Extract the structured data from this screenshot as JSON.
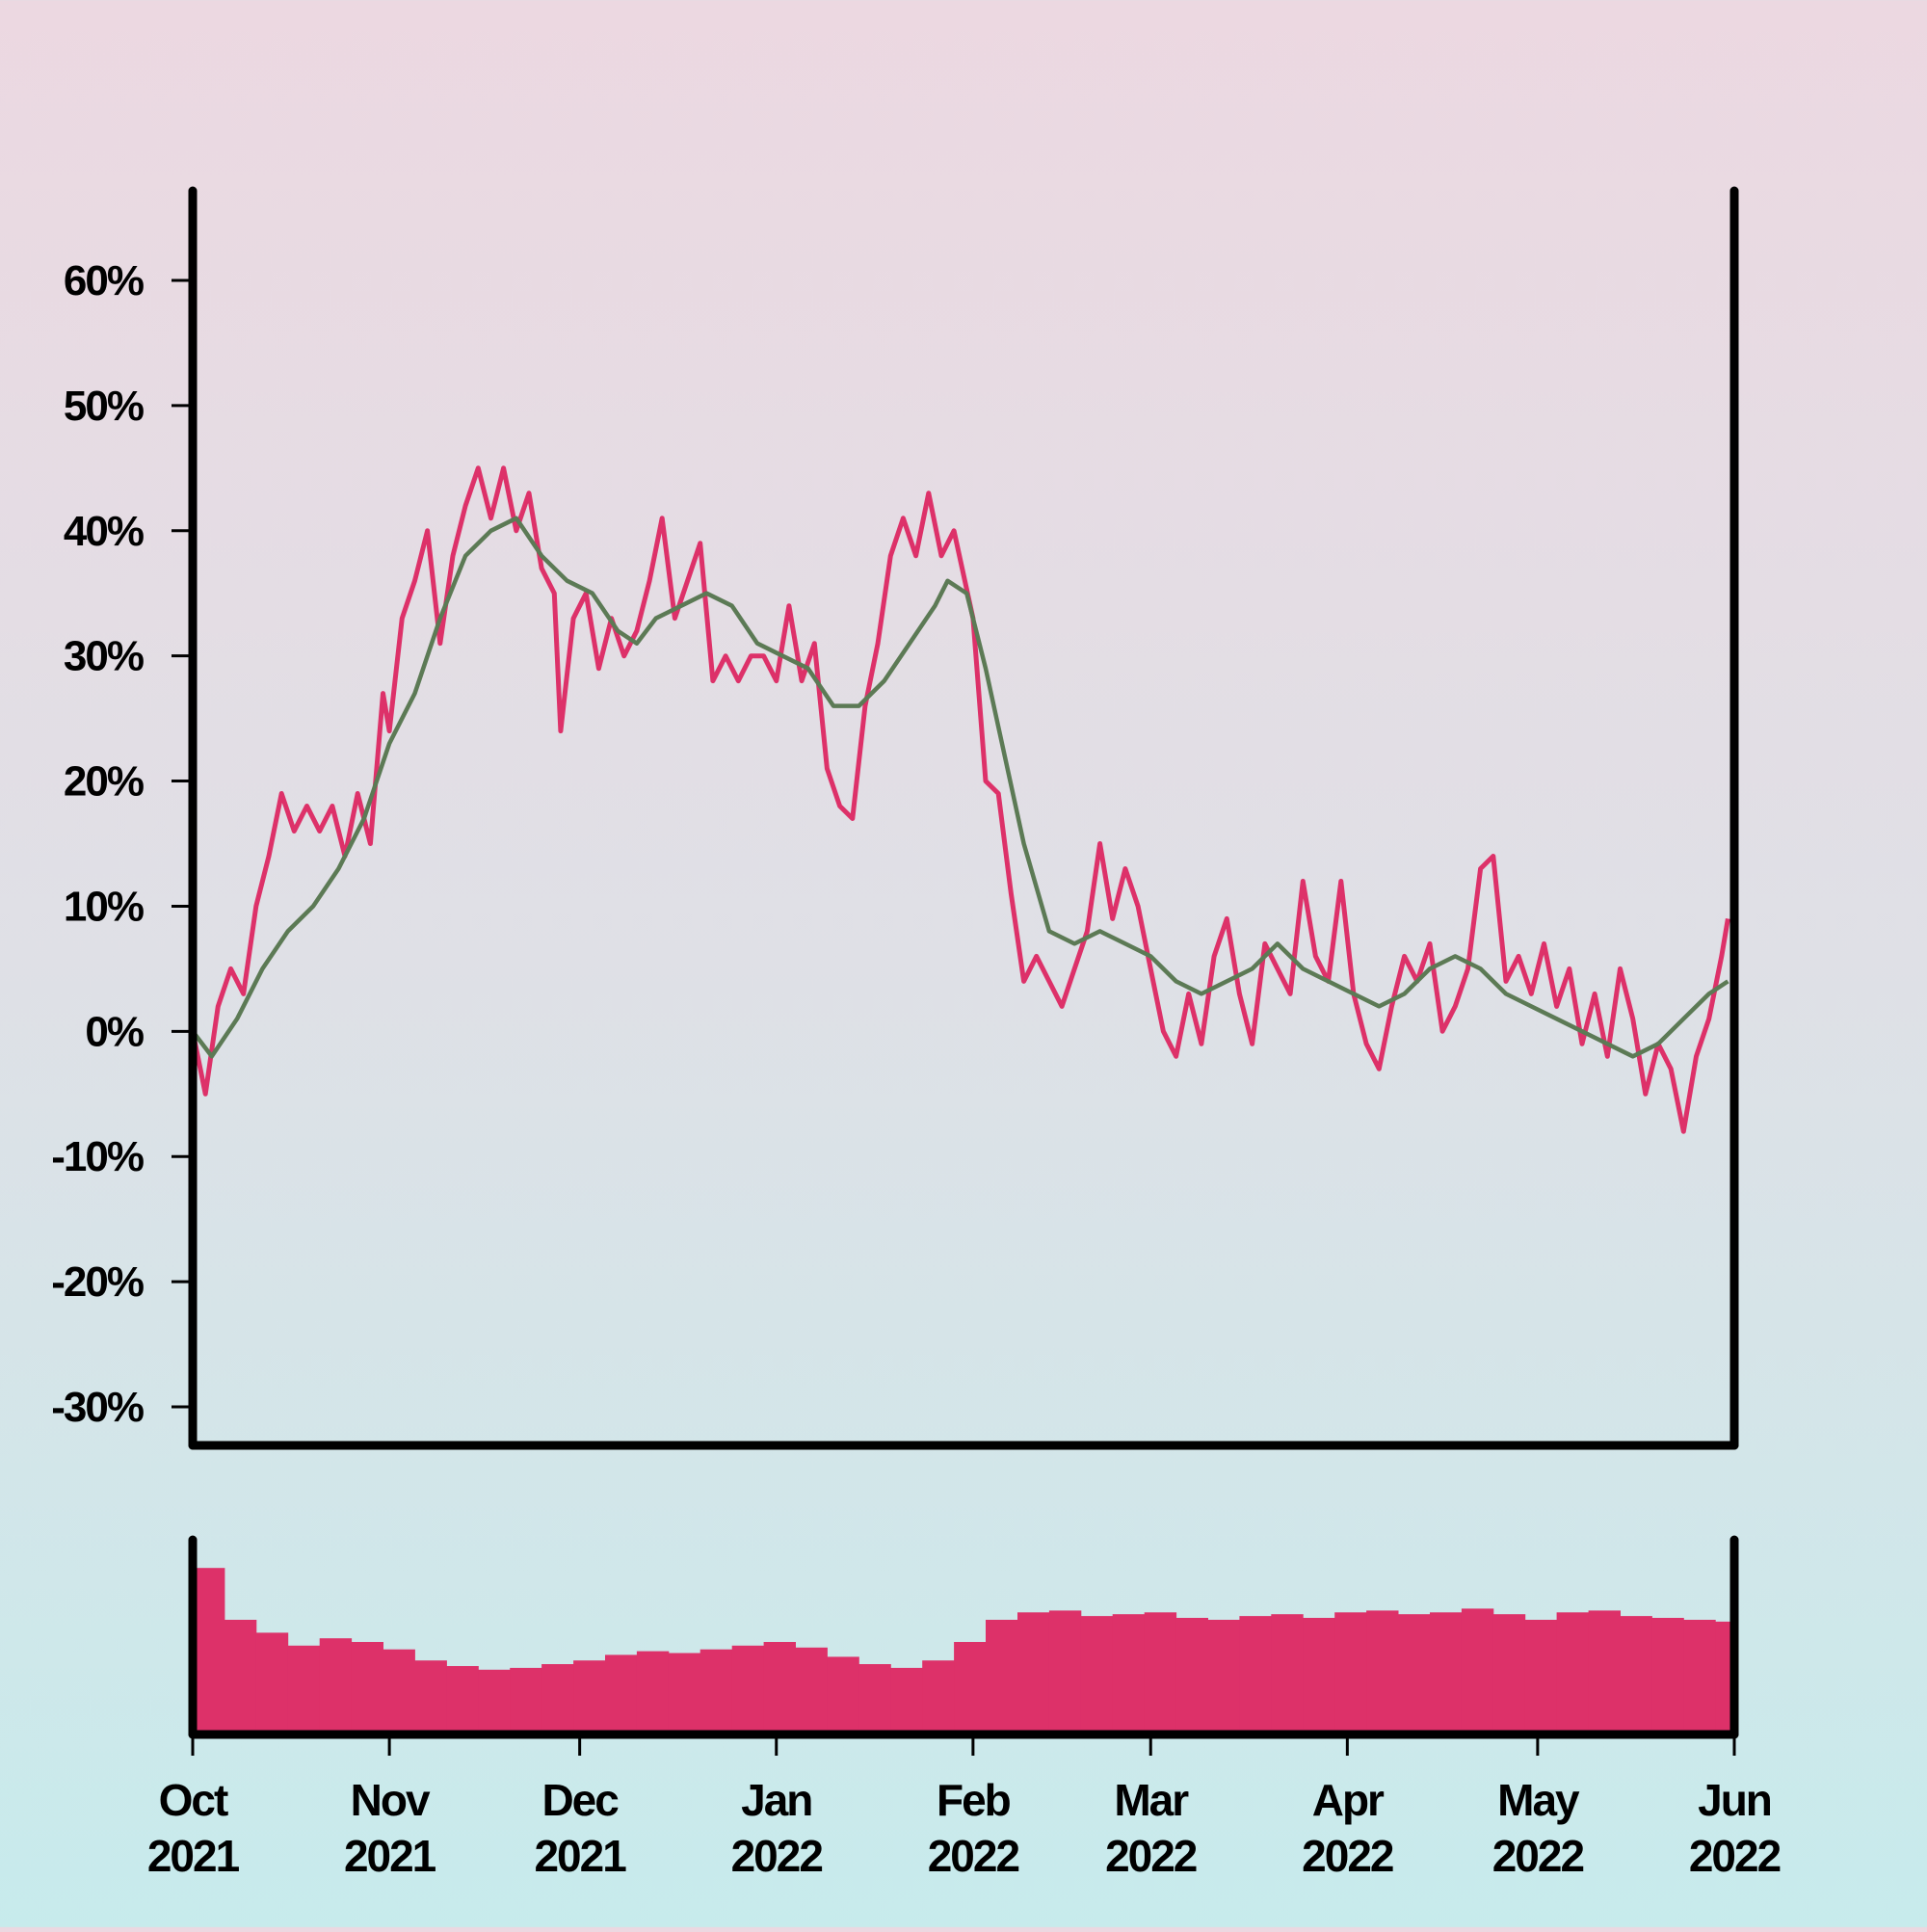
{
  "colors": {
    "price_line": "#dd3169",
    "moving_average": "#5c7a55",
    "volume_bars": "#dd3169",
    "axes": "#000000"
  },
  "chart_data": [
    {
      "type": "line",
      "panel": "price",
      "title": "",
      "xlabel": "",
      "ylabel": "",
      "x_axis_type": "date",
      "xlim": [
        "2021-10-01",
        "2022-06-01"
      ],
      "ylim": [
        -33,
        67
      ],
      "yticks": [
        60,
        50,
        40,
        30,
        20,
        10,
        0,
        -10,
        -20,
        -30
      ],
      "ytick_labels": [
        "60%",
        "50%",
        "40%",
        "30%",
        "20%",
        "10%",
        "0%",
        "-10%",
        "-20%",
        "-30%"
      ],
      "grid": false,
      "legend": "none",
      "series": [
        {
          "role": "daily",
          "points": [
            [
              "2021-10-01",
              0
            ],
            [
              "2021-10-03",
              -5
            ],
            [
              "2021-10-05",
              2
            ],
            [
              "2021-10-07",
              5
            ],
            [
              "2021-10-09",
              3
            ],
            [
              "2021-10-11",
              10
            ],
            [
              "2021-10-13",
              14
            ],
            [
              "2021-10-15",
              19
            ],
            [
              "2021-10-17",
              16
            ],
            [
              "2021-10-19",
              18
            ],
            [
              "2021-10-21",
              16
            ],
            [
              "2021-10-23",
              18
            ],
            [
              "2021-10-25",
              14
            ],
            [
              "2021-10-27",
              19
            ],
            [
              "2021-10-29",
              15
            ],
            [
              "2021-10-31",
              27
            ],
            [
              "2021-11-01",
              24
            ],
            [
              "2021-11-03",
              33
            ],
            [
              "2021-11-05",
              36
            ],
            [
              "2021-11-07",
              40
            ],
            [
              "2021-11-09",
              31
            ],
            [
              "2021-11-11",
              38
            ],
            [
              "2021-11-13",
              42
            ],
            [
              "2021-11-15",
              45
            ],
            [
              "2021-11-17",
              41
            ],
            [
              "2021-11-19",
              45
            ],
            [
              "2021-11-21",
              40
            ],
            [
              "2021-11-23",
              43
            ],
            [
              "2021-11-25",
              37
            ],
            [
              "2021-11-27",
              35
            ],
            [
              "2021-11-28",
              24
            ],
            [
              "2021-11-30",
              33
            ],
            [
              "2021-12-02",
              35
            ],
            [
              "2021-12-04",
              29
            ],
            [
              "2021-12-06",
              33
            ],
            [
              "2021-12-08",
              30
            ],
            [
              "2021-12-10",
              32
            ],
            [
              "2021-12-12",
              36
            ],
            [
              "2021-12-14",
              41
            ],
            [
              "2021-12-16",
              33
            ],
            [
              "2021-12-18",
              36
            ],
            [
              "2021-12-20",
              39
            ],
            [
              "2021-12-22",
              28
            ],
            [
              "2021-12-24",
              30
            ],
            [
              "2021-12-26",
              28
            ],
            [
              "2021-12-28",
              30
            ],
            [
              "2021-12-30",
              30
            ],
            [
              "2022-01-01",
              28
            ],
            [
              "2022-01-03",
              34
            ],
            [
              "2022-01-05",
              28
            ],
            [
              "2022-01-07",
              31
            ],
            [
              "2022-01-09",
              21
            ],
            [
              "2022-01-11",
              18
            ],
            [
              "2022-01-13",
              17
            ],
            [
              "2022-01-15",
              26
            ],
            [
              "2022-01-17",
              31
            ],
            [
              "2022-01-19",
              38
            ],
            [
              "2022-01-21",
              41
            ],
            [
              "2022-01-23",
              38
            ],
            [
              "2022-01-25",
              43
            ],
            [
              "2022-01-27",
              38
            ],
            [
              "2022-01-29",
              40
            ],
            [
              "2022-02-01",
              33
            ],
            [
              "2022-02-03",
              20
            ],
            [
              "2022-02-05",
              19
            ],
            [
              "2022-02-07",
              11
            ],
            [
              "2022-02-09",
              4
            ],
            [
              "2022-02-11",
              6
            ],
            [
              "2022-02-13",
              4
            ],
            [
              "2022-02-15",
              2
            ],
            [
              "2022-02-17",
              5
            ],
            [
              "2022-02-19",
              8
            ],
            [
              "2022-02-21",
              15
            ],
            [
              "2022-02-23",
              9
            ],
            [
              "2022-02-25",
              13
            ],
            [
              "2022-02-27",
              10
            ],
            [
              "2022-03-01",
              5
            ],
            [
              "2022-03-03",
              0
            ],
            [
              "2022-03-05",
              -2
            ],
            [
              "2022-03-07",
              3
            ],
            [
              "2022-03-09",
              -1
            ],
            [
              "2022-03-11",
              6
            ],
            [
              "2022-03-13",
              9
            ],
            [
              "2022-03-15",
              3
            ],
            [
              "2022-03-17",
              -1
            ],
            [
              "2022-03-19",
              7
            ],
            [
              "2022-03-21",
              5
            ],
            [
              "2022-03-23",
              3
            ],
            [
              "2022-03-25",
              12
            ],
            [
              "2022-03-27",
              6
            ],
            [
              "2022-03-29",
              4
            ],
            [
              "2022-03-31",
              12
            ],
            [
              "2022-04-02",
              3
            ],
            [
              "2022-04-04",
              -1
            ],
            [
              "2022-04-06",
              -3
            ],
            [
              "2022-04-08",
              2
            ],
            [
              "2022-04-10",
              6
            ],
            [
              "2022-04-12",
              4
            ],
            [
              "2022-04-14",
              7
            ],
            [
              "2022-04-16",
              0
            ],
            [
              "2022-04-18",
              2
            ],
            [
              "2022-04-20",
              5
            ],
            [
              "2022-04-22",
              13
            ],
            [
              "2022-04-24",
              14
            ],
            [
              "2022-04-26",
              4
            ],
            [
              "2022-04-28",
              6
            ],
            [
              "2022-04-30",
              3
            ],
            [
              "2022-05-02",
              7
            ],
            [
              "2022-05-04",
              2
            ],
            [
              "2022-05-06",
              5
            ],
            [
              "2022-05-08",
              -1
            ],
            [
              "2022-05-10",
              3
            ],
            [
              "2022-05-12",
              -2
            ],
            [
              "2022-05-14",
              5
            ],
            [
              "2022-05-16",
              1
            ],
            [
              "2022-05-18",
              -5
            ],
            [
              "2022-05-20",
              -1
            ],
            [
              "2022-05-22",
              -3
            ],
            [
              "2022-05-24",
              -8
            ],
            [
              "2022-05-26",
              -2
            ],
            [
              "2022-05-28",
              1
            ],
            [
              "2022-05-30",
              6
            ],
            [
              "2022-05-31",
              9
            ]
          ]
        },
        {
          "role": "moving_average",
          "points": [
            [
              "2021-10-01",
              0
            ],
            [
              "2021-10-04",
              -2
            ],
            [
              "2021-10-08",
              1
            ],
            [
              "2021-10-12",
              5
            ],
            [
              "2021-10-16",
              8
            ],
            [
              "2021-10-20",
              10
            ],
            [
              "2021-10-24",
              13
            ],
            [
              "2021-10-28",
              17
            ],
            [
              "2021-11-01",
              23
            ],
            [
              "2021-11-05",
              27
            ],
            [
              "2021-11-09",
              33
            ],
            [
              "2021-11-13",
              38
            ],
            [
              "2021-11-17",
              40
            ],
            [
              "2021-11-21",
              41
            ],
            [
              "2021-11-25",
              38
            ],
            [
              "2021-11-29",
              36
            ],
            [
              "2021-12-03",
              35
            ],
            [
              "2021-12-07",
              32
            ],
            [
              "2021-12-10",
              31
            ],
            [
              "2021-12-13",
              33
            ],
            [
              "2021-12-17",
              34
            ],
            [
              "2021-12-21",
              35
            ],
            [
              "2021-12-25",
              34
            ],
            [
              "2021-12-29",
              31
            ],
            [
              "2022-01-02",
              30
            ],
            [
              "2022-01-06",
              29
            ],
            [
              "2022-01-10",
              26
            ],
            [
              "2022-01-14",
              26
            ],
            [
              "2022-01-18",
              28
            ],
            [
              "2022-01-22",
              31
            ],
            [
              "2022-01-26",
              34
            ],
            [
              "2022-01-28",
              36
            ],
            [
              "2022-01-31",
              35
            ],
            [
              "2022-02-03",
              29
            ],
            [
              "2022-02-06",
              22
            ],
            [
              "2022-02-09",
              15
            ],
            [
              "2022-02-13",
              8
            ],
            [
              "2022-02-17",
              7
            ],
            [
              "2022-02-21",
              8
            ],
            [
              "2022-02-25",
              7
            ],
            [
              "2022-03-01",
              6
            ],
            [
              "2022-03-05",
              4
            ],
            [
              "2022-03-09",
              3
            ],
            [
              "2022-03-13",
              4
            ],
            [
              "2022-03-17",
              5
            ],
            [
              "2022-03-21",
              7
            ],
            [
              "2022-03-25",
              5
            ],
            [
              "2022-03-29",
              4
            ],
            [
              "2022-04-02",
              3
            ],
            [
              "2022-04-06",
              2
            ],
            [
              "2022-04-10",
              3
            ],
            [
              "2022-04-14",
              5
            ],
            [
              "2022-04-18",
              6
            ],
            [
              "2022-04-22",
              5
            ],
            [
              "2022-04-26",
              3
            ],
            [
              "2022-04-30",
              2
            ],
            [
              "2022-05-04",
              1
            ],
            [
              "2022-05-08",
              0
            ],
            [
              "2022-05-12",
              -1
            ],
            [
              "2022-05-16",
              -2
            ],
            [
              "2022-05-20",
              -1
            ],
            [
              "2022-05-24",
              1
            ],
            [
              "2022-05-28",
              3
            ],
            [
              "2022-05-31",
              4
            ]
          ]
        }
      ]
    },
    {
      "type": "bar",
      "panel": "volume",
      "title": "",
      "xlabel": "",
      "ylabel": "",
      "x_axis_type": "date",
      "xlim": [
        "2021-10-01",
        "2022-06-01"
      ],
      "ylim": [
        0,
        1
      ],
      "grid": false,
      "value_scale": "relative (no y-axis labels shown)",
      "points": [
        [
          "2021-10-01",
          0.9
        ],
        [
          "2021-10-06",
          0.62
        ],
        [
          "2021-10-11",
          0.55
        ],
        [
          "2021-10-16",
          0.48
        ],
        [
          "2021-10-21",
          0.52
        ],
        [
          "2021-10-26",
          0.5
        ],
        [
          "2021-10-31",
          0.46
        ],
        [
          "2021-11-05",
          0.4
        ],
        [
          "2021-11-10",
          0.37
        ],
        [
          "2021-11-15",
          0.35
        ],
        [
          "2021-11-20",
          0.36
        ],
        [
          "2021-11-25",
          0.38
        ],
        [
          "2021-11-30",
          0.4
        ],
        [
          "2021-12-05",
          0.43
        ],
        [
          "2021-12-10",
          0.45
        ],
        [
          "2021-12-15",
          0.44
        ],
        [
          "2021-12-20",
          0.46
        ],
        [
          "2021-12-25",
          0.48
        ],
        [
          "2021-12-30",
          0.5
        ],
        [
          "2022-01-04",
          0.47
        ],
        [
          "2022-01-09",
          0.42
        ],
        [
          "2022-01-14",
          0.38
        ],
        [
          "2022-01-19",
          0.36
        ],
        [
          "2022-01-24",
          0.4
        ],
        [
          "2022-01-29",
          0.5
        ],
        [
          "2022-02-03",
          0.62
        ],
        [
          "2022-02-08",
          0.66
        ],
        [
          "2022-02-13",
          0.67
        ],
        [
          "2022-02-18",
          0.64
        ],
        [
          "2022-02-23",
          0.65
        ],
        [
          "2022-02-28",
          0.66
        ],
        [
          "2022-03-05",
          0.63
        ],
        [
          "2022-03-10",
          0.62
        ],
        [
          "2022-03-15",
          0.64
        ],
        [
          "2022-03-20",
          0.65
        ],
        [
          "2022-03-25",
          0.63
        ],
        [
          "2022-03-30",
          0.66
        ],
        [
          "2022-04-04",
          0.67
        ],
        [
          "2022-04-09",
          0.65
        ],
        [
          "2022-04-14",
          0.66
        ],
        [
          "2022-04-19",
          0.68
        ],
        [
          "2022-04-24",
          0.65
        ],
        [
          "2022-04-29",
          0.62
        ],
        [
          "2022-05-04",
          0.66
        ],
        [
          "2022-05-09",
          0.67
        ],
        [
          "2022-05-14",
          0.64
        ],
        [
          "2022-05-19",
          0.63
        ],
        [
          "2022-05-24",
          0.62
        ],
        [
          "2022-05-29",
          0.61
        ]
      ]
    }
  ],
  "x_axis": {
    "ticks": [
      {
        "date": "2021-10-01",
        "month": "Oct",
        "year": "2021"
      },
      {
        "date": "2021-11-01",
        "month": "Nov",
        "year": "2021"
      },
      {
        "date": "2021-12-01",
        "month": "Dec",
        "year": "2021"
      },
      {
        "date": "2022-01-01",
        "month": "Jan",
        "year": "2022"
      },
      {
        "date": "2022-02-01",
        "month": "Feb",
        "year": "2022"
      },
      {
        "date": "2022-03-01",
        "month": "Mar",
        "year": "2022"
      },
      {
        "date": "2022-04-01",
        "month": "Apr",
        "year": "2022"
      },
      {
        "date": "2022-05-01",
        "month": "May",
        "year": "2022"
      },
      {
        "date": "2022-06-01",
        "month": "Jun",
        "year": "2022"
      }
    ]
  }
}
